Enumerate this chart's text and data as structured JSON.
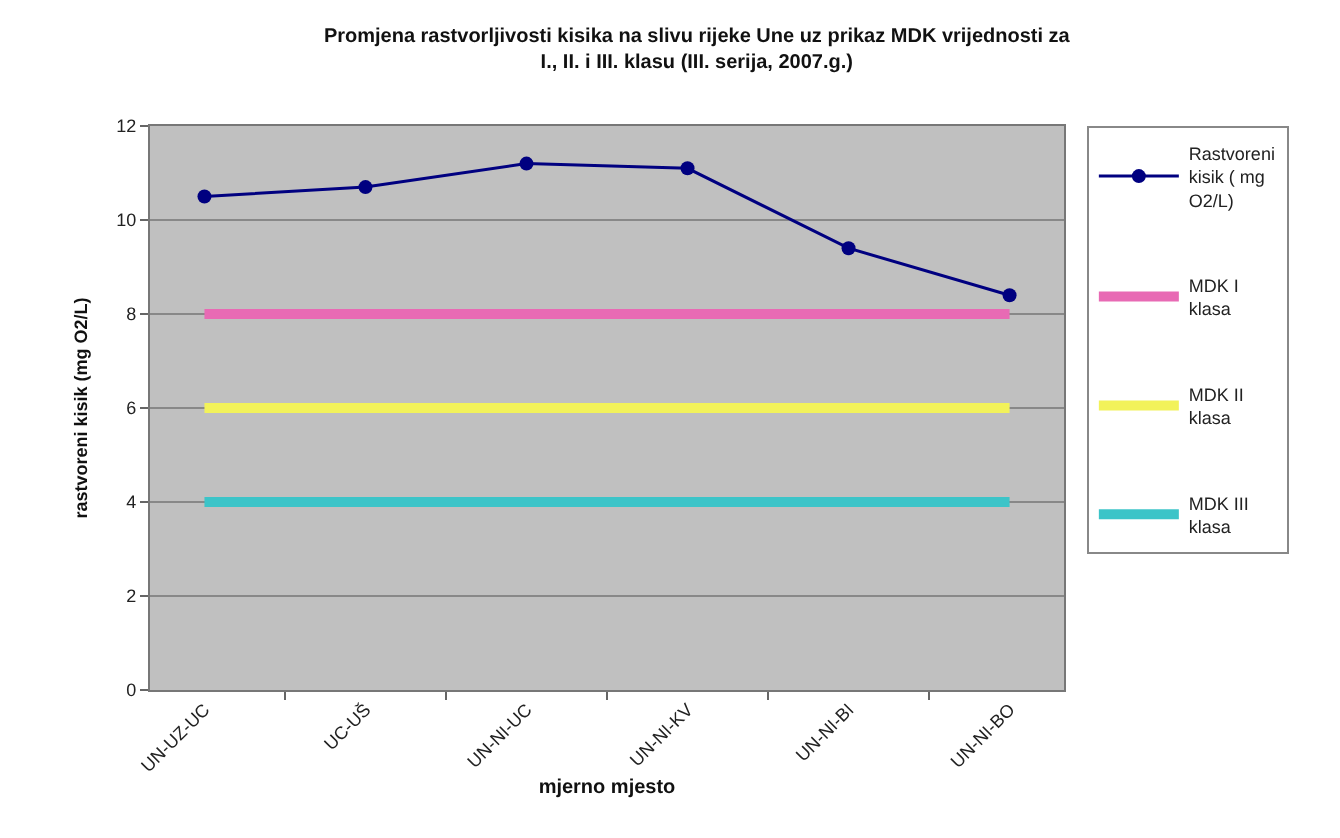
{
  "chart_data": {
    "type": "line",
    "title": "Promjena rastvorljivosti kisika na slivu rijeke Une uz prikaz MDK vrijednosti za I., II. i III. klasu (III. serija, 2007.g.)",
    "xlabel": "mjerno mjesto",
    "ylabel": "rastvoreni kisik (mg O2/L)",
    "categories": [
      "UN-UZ-UC",
      "UC-UŠ",
      "UN-NI-UC",
      "UN-NI-KV",
      "UN-NI-BI",
      "UN-NI-BO"
    ],
    "series": [
      {
        "name": "Rastvoreni kisik ( mg O2/L)",
        "color": "#000080",
        "marker": "circle",
        "values": [
          10.5,
          10.7,
          11.2,
          11.1,
          9.4,
          8.4
        ]
      },
      {
        "name": "MDK I klasa",
        "color": "#e86ab4",
        "marker": "none",
        "values": [
          8,
          8,
          8,
          8,
          8,
          8
        ]
      },
      {
        "name": "MDK II klasa",
        "color": "#f2f25a",
        "marker": "none",
        "values": [
          6,
          6,
          6,
          6,
          6,
          6
        ]
      },
      {
        "name": "MDK III klasa",
        "color": "#3cc4c8",
        "marker": "none",
        "values": [
          4,
          4,
          4,
          4,
          4,
          4
        ]
      }
    ],
    "ylim": [
      0,
      12
    ],
    "yticks": [
      0,
      2,
      4,
      6,
      8,
      10,
      12
    ],
    "grid": "y",
    "legend": "right"
  }
}
